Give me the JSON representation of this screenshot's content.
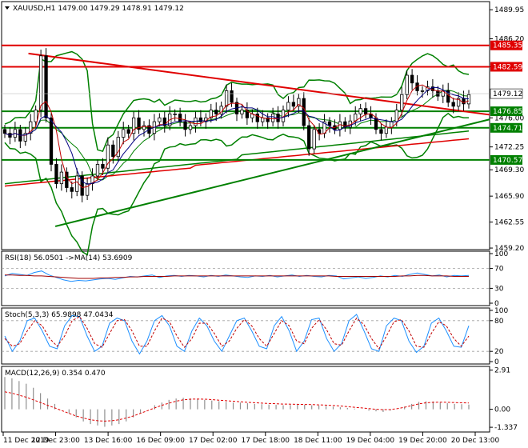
{
  "chart_data": [
    {
      "type": "candlestick",
      "title": "XAUUSD,H1",
      "ohlc": {
        "open": "1479.00",
        "high": "1479.29",
        "low": "1478.91",
        "close": "1479.12"
      },
      "ylim": [
        1459.0,
        1491.0
      ],
      "y_ticks": [
        "1489.95",
        "1486.20",
        "1482.59",
        "1479.12",
        "1476.00",
        "1472.25",
        "1469.30",
        "1465.90",
        "1462.55",
        "1459.20"
      ],
      "x_ticks": [
        "11 Dec 2019",
        "12 Dec 23:00",
        "13 Dec 16:00",
        "16 Dec 09:00",
        "17 Dec 02:00",
        "17 Dec 18:00",
        "18 Dec 11:00",
        "19 Dec 04:00",
        "19 Dec 20:00",
        "20 Dec 13:00"
      ],
      "price_levels": [
        {
          "value": 1485.35,
          "label": "1485.35",
          "color": "#e00000"
        },
        {
          "value": 1482.59,
          "label": "1482.59",
          "color": "#e00000"
        },
        {
          "value": 1476.85,
          "label": "1476.85",
          "color": "#008000"
        },
        {
          "value": 1474.71,
          "label": "1474.71",
          "color": "#008000"
        },
        {
          "value": 1470.57,
          "label": "1470.57",
          "color": "#008000"
        }
      ],
      "current_price": {
        "value": 1479.12,
        "label": "1479.12"
      },
      "trendlines": [
        {
          "color": "#e00000",
          "from": [
            0.055,
            1484.3
          ],
          "to": [
            1.0,
            1476.4
          ]
        },
        {
          "color": "#008000",
          "from": [
            0.11,
            1462.0
          ],
          "to": [
            1.0,
            1475.8
          ]
        }
      ],
      "close_series": [
        1474.0,
        1473.5,
        1474.5,
        1473.0,
        1474.0,
        1475.5,
        1477.0,
        1484.0,
        1476.0,
        1470.0,
        1467.5,
        1469.0,
        1467.0,
        1466.5,
        1468.5,
        1466.0,
        1467.5,
        1468.5,
        1470.0,
        1469.5,
        1472.5,
        1471.0,
        1473.5,
        1474.5,
        1474.0,
        1476.0,
        1474.5,
        1475.0,
        1474.0,
        1475.5,
        1476.0,
        1475.0,
        1476.5,
        1476.5,
        1475.5,
        1474.5,
        1475.0,
        1476.0,
        1475.5,
        1476.0,
        1477.0,
        1476.5,
        1477.5,
        1479.5,
        1478.0,
        1476.5,
        1477.0,
        1476.0,
        1476.5,
        1475.5,
        1476.0,
        1475.5,
        1476.5,
        1475.5,
        1477.0,
        1478.0,
        1477.5,
        1478.5,
        1475.0,
        1472.0,
        1474.5,
        1474.0,
        1475.5,
        1475.0,
        1474.5,
        1475.5,
        1474.8,
        1475.6,
        1476.5,
        1477.2,
        1476.5,
        1476.0,
        1474.5,
        1474.0,
        1474.8,
        1475.5,
        1477.0,
        1479.0,
        1481.5,
        1480.5,
        1479.5,
        1479.5,
        1480.0,
        1479.5,
        1478.8,
        1479.5,
        1478.0,
        1477.5,
        1478.5,
        1477.8,
        1479.0
      ]
    },
    {
      "type": "line",
      "title": "RSI(18) 56.0501 ->MA(14) 53.6909",
      "ylim": [
        0,
        100
      ],
      "y_ticks": [
        "100",
        "70",
        "30",
        "0"
      ],
      "levels": [
        70,
        30
      ],
      "series": [
        {
          "color": "#1e90ff",
          "values": [
            55,
            60,
            58,
            56,
            62,
            65,
            57,
            52,
            47,
            44,
            46,
            45,
            47,
            49,
            50,
            48,
            51,
            54,
            53,
            55,
            57,
            52,
            55,
            56,
            54,
            56,
            55,
            53,
            56,
            54,
            57,
            55,
            53,
            52,
            55,
            54,
            56,
            53,
            55,
            57,
            54,
            56,
            54,
            53,
            56,
            55,
            49,
            51,
            53,
            50,
            52,
            55,
            53,
            56,
            54,
            58,
            61,
            58,
            55,
            57,
            53,
            56,
            55,
            56
          ]
        },
        {
          "color": "#a00000",
          "values": [
            57,
            57,
            56,
            56,
            55,
            55,
            54,
            53,
            52,
            51,
            50,
            50,
            50,
            51,
            51,
            52,
            52,
            53,
            53,
            54,
            54,
            54,
            54,
            55,
            55,
            55,
            55,
            55,
            55,
            55,
            55,
            55,
            55,
            55,
            55,
            55,
            55,
            55,
            55,
            55,
            55,
            55,
            55,
            55,
            55,
            54,
            54,
            54,
            54,
            54,
            54,
            54,
            54,
            54,
            55,
            55,
            56,
            56,
            55,
            55,
            55,
            54,
            54,
            54
          ]
        }
      ]
    },
    {
      "type": "line",
      "title": "Stoch(5,3,3) 65.9898 47.0434",
      "ylim": [
        0,
        100
      ],
      "y_ticks": [
        "100",
        "80",
        "20",
        "0"
      ],
      "levels": [
        80,
        20
      ],
      "series": [
        {
          "color": "#1e90ff",
          "values": [
            50,
            20,
            40,
            80,
            85,
            60,
            30,
            25,
            70,
            90,
            88,
            50,
            20,
            30,
            75,
            85,
            80,
            40,
            15,
            40,
            80,
            90,
            70,
            30,
            20,
            60,
            85,
            70,
            40,
            20,
            50,
            80,
            85,
            60,
            30,
            25,
            70,
            88,
            60,
            20,
            40,
            82,
            85,
            45,
            20,
            35,
            80,
            92,
            60,
            25,
            20,
            70,
            85,
            80,
            40,
            18,
            30,
            75,
            85,
            60,
            30,
            28,
            70
          ]
        },
        {
          "color": "#c00000",
          "values": [
            45,
            30,
            35,
            60,
            80,
            70,
            45,
            30,
            50,
            80,
            88,
            65,
            35,
            28,
            55,
            80,
            82,
            60,
            30,
            30,
            60,
            85,
            78,
            50,
            28,
            45,
            75,
            75,
            55,
            30,
            40,
            65,
            82,
            70,
            45,
            30,
            55,
            80,
            70,
            40,
            35,
            65,
            82,
            62,
            35,
            32,
            60,
            85,
            72,
            45,
            25,
            50,
            78,
            82,
            60,
            30,
            28,
            55,
            78,
            70,
            45,
            30,
            50
          ]
        }
      ]
    },
    {
      "type": "bar",
      "title": "MACD(12,26,9) 0.354 0.470",
      "ylim": [
        -1.45,
        2.95
      ],
      "y_ticks": [
        "2.91",
        "0.00",
        "-1.337"
      ],
      "histogram": [
        2.4,
        2.3,
        2.1,
        1.9,
        1.6,
        1.2,
        0.8,
        0.4,
        0.0,
        -0.3,
        -0.6,
        -0.9,
        -1.1,
        -1.2,
        -1.3,
        -1.2,
        -1.1,
        -0.9,
        -0.6,
        -0.3,
        0.0,
        0.3,
        0.5,
        0.7,
        0.8,
        0.85,
        0.8,
        0.75,
        0.7,
        0.65,
        0.6,
        0.55,
        0.5,
        0.5,
        0.45,
        0.4,
        0.38,
        0.35,
        0.33,
        0.3,
        0.32,
        0.34,
        0.33,
        0.3,
        0.28,
        0.25,
        0.2,
        0.15,
        0.1,
        0.05,
        0.0,
        -0.1,
        -0.15,
        -0.2,
        -0.1,
        0.0,
        0.2,
        0.4,
        0.55,
        0.6,
        0.58,
        0.5,
        0.45,
        0.4,
        0.38,
        0.35
      ],
      "signal": [
        1.3,
        1.2,
        1.05,
        0.9,
        0.7,
        0.5,
        0.3,
        0.1,
        -0.1,
        -0.3,
        -0.5,
        -0.65,
        -0.78,
        -0.85,
        -0.88,
        -0.85,
        -0.78,
        -0.65,
        -0.5,
        -0.3,
        -0.1,
        0.1,
        0.3,
        0.45,
        0.6,
        0.7,
        0.75,
        0.76,
        0.75,
        0.72,
        0.68,
        0.64,
        0.6,
        0.56,
        0.52,
        0.49,
        0.46,
        0.43,
        0.41,
        0.39,
        0.38,
        0.37,
        0.36,
        0.35,
        0.33,
        0.31,
        0.28,
        0.25,
        0.2,
        0.15,
        0.1,
        0.05,
        0.0,
        -0.03,
        -0.02,
        0.05,
        0.15,
        0.28,
        0.4,
        0.48,
        0.52,
        0.53,
        0.52,
        0.5,
        0.48,
        0.47
      ]
    }
  ]
}
